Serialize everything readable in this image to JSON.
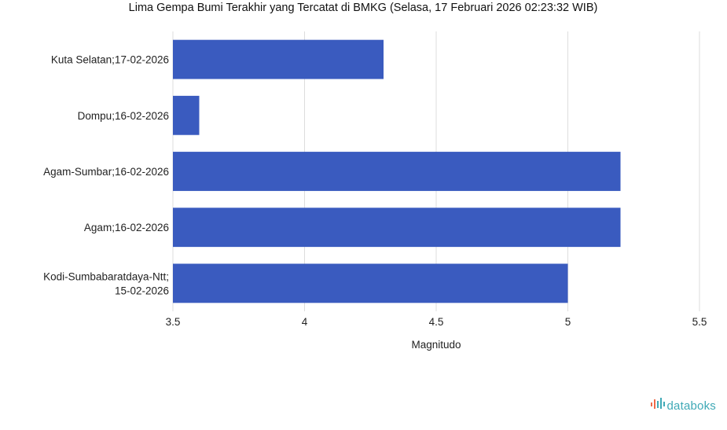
{
  "chart_data": {
    "type": "bar",
    "orientation": "horizontal",
    "title": "Lima Gempa Bumi Terakhir yang Tercatat di BMKG (Selasa, 17 Februari 2026 02:23:32 WIB)",
    "xlabel": "Magnitudo",
    "ylabel": "",
    "categories": [
      [
        "Kuta Selatan;17-02-2026"
      ],
      [
        "Dompu;16-02-2026"
      ],
      [
        "Agam-Sumbar;16-02-2026"
      ],
      [
        "Agam;16-02-2026"
      ],
      [
        "Kodi-Sumbabaratdaya-Ntt;",
        "15-02-2026"
      ]
    ],
    "values": [
      4.3,
      3.6,
      5.2,
      5.2,
      5.0
    ],
    "xlim": [
      3.5,
      5.5
    ],
    "xticks": [
      "3.5",
      "4",
      "4.5",
      "5",
      "5.5"
    ],
    "bar_color": "#3a5bbf",
    "grid": true
  },
  "brand": {
    "logo_icon": "databoks-bars-icon",
    "name": "databoks",
    "color": "#3fa9b6"
  }
}
